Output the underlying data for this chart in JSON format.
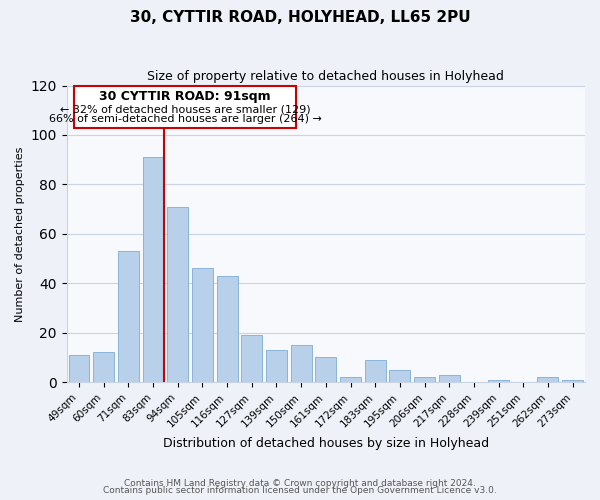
{
  "title": "30, CYTTIR ROAD, HOLYHEAD, LL65 2PU",
  "subtitle": "Size of property relative to detached houses in Holyhead",
  "xlabel": "Distribution of detached houses by size in Holyhead",
  "ylabel": "Number of detached properties",
  "categories": [
    "49sqm",
    "60sqm",
    "71sqm",
    "83sqm",
    "94sqm",
    "105sqm",
    "116sqm",
    "127sqm",
    "139sqm",
    "150sqm",
    "161sqm",
    "172sqm",
    "183sqm",
    "195sqm",
    "206sqm",
    "217sqm",
    "228sqm",
    "239sqm",
    "251sqm",
    "262sqm",
    "273sqm"
  ],
  "values": [
    11,
    12,
    53,
    91,
    71,
    46,
    43,
    19,
    13,
    15,
    10,
    2,
    9,
    5,
    2,
    3,
    0,
    1,
    0,
    2,
    1
  ],
  "bar_color": "#b8d0ea",
  "bar_edge_color": "#89b4d9",
  "highlight_line_index": 3,
  "highlight_color": "#cc0000",
  "annotation_box_color": "#cc0000",
  "annotation_text_line1": "30 CYTTIR ROAD: 91sqm",
  "annotation_text_line2": "← 32% of detached houses are smaller (129)",
  "annotation_text_line3": "66% of semi-detached houses are larger (264) →",
  "ylim": [
    0,
    120
  ],
  "yticks": [
    0,
    20,
    40,
    60,
    80,
    100,
    120
  ],
  "footer_line1": "Contains HM Land Registry data © Crown copyright and database right 2024.",
  "footer_line2": "Contains public sector information licensed under the Open Government Licence v3.0.",
  "background_color": "#eef2f8",
  "plot_background_color": "#f7f9fc",
  "grid_color": "#c8d4e4",
  "title_fontsize": 11,
  "subtitle_fontsize": 9,
  "ylabel_fontsize": 8,
  "xlabel_fontsize": 9,
  "tick_fontsize": 7.5,
  "footer_fontsize": 6.5,
  "annotation_fontsize_title": 9,
  "annotation_fontsize_body": 8
}
